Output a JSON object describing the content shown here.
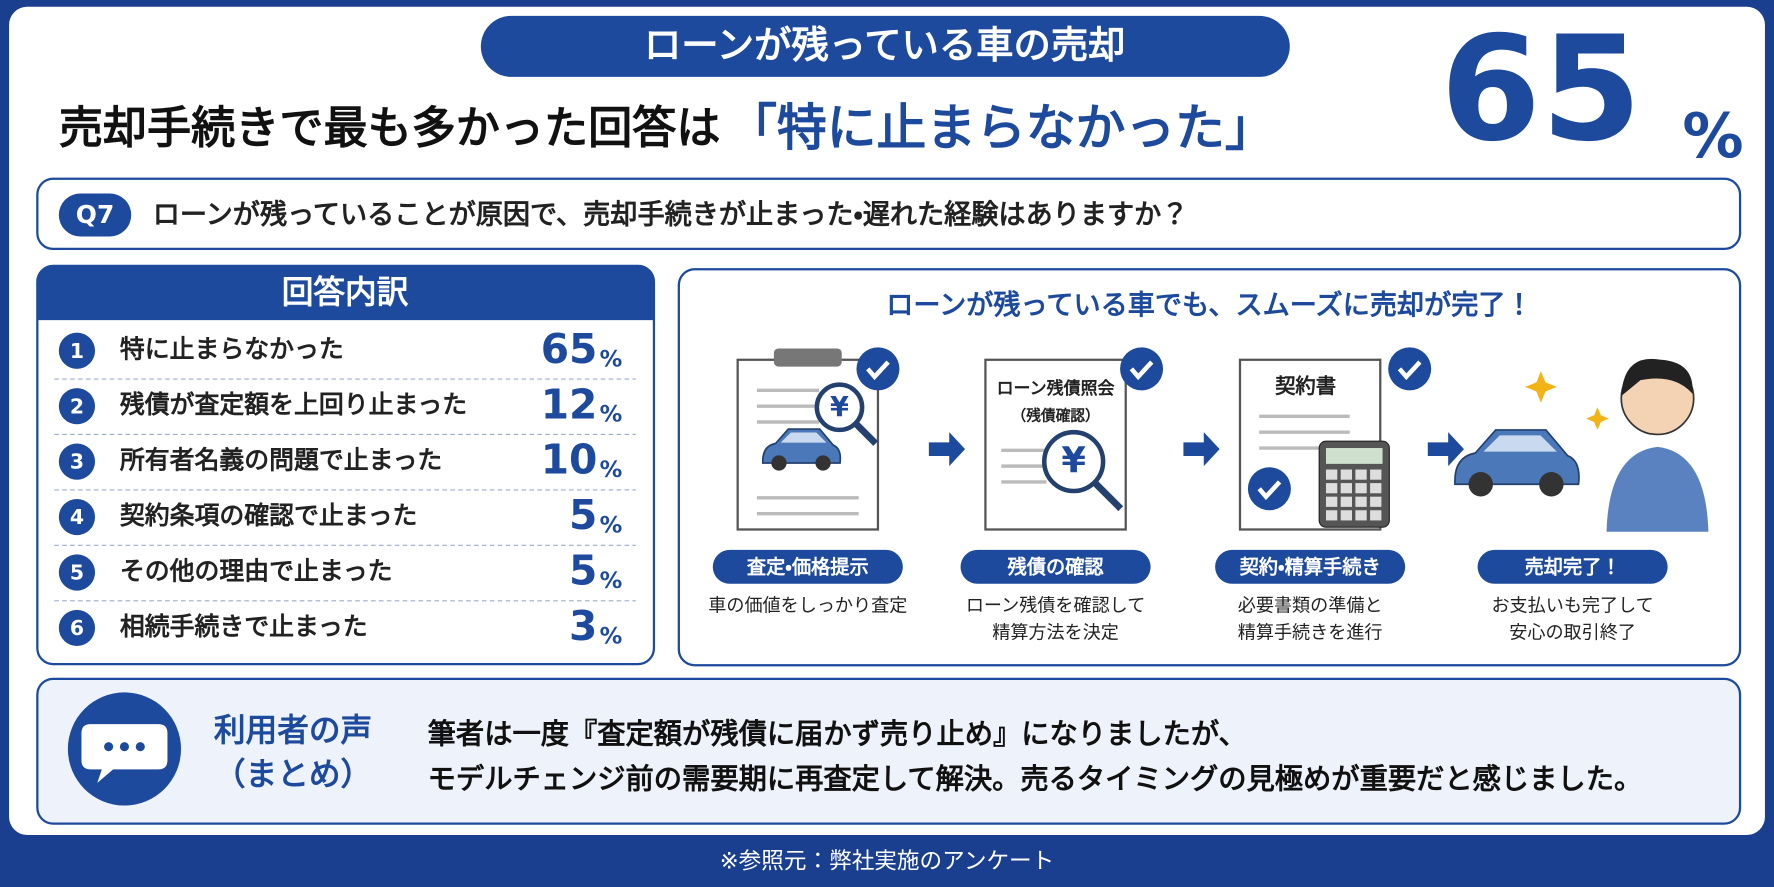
{
  "header": {
    "badge": "ローンが残っている車の売却",
    "headline": "売却手続きで最も多かった回答は",
    "highlight": "「特に止まらなかった」",
    "big_value": 65,
    "big_unit": "%"
  },
  "question": {
    "label": "Q7",
    "text": "ローンが残っていることが原因で、売却手続きが止まった・遅れた経験はありますか？"
  },
  "breakdown": {
    "title": "回答内訳",
    "items": [
      {
        "rank": 1,
        "label": "特に止まらなかった",
        "value": 65,
        "unit": "%"
      },
      {
        "rank": 2,
        "label": "残債が査定額を上回り止まった",
        "value": 12,
        "unit": "%"
      },
      {
        "rank": 3,
        "label": "所有者名義の問題で止まった",
        "value": 10,
        "unit": "%"
      },
      {
        "rank": 4,
        "label": "契約条項の確認で止まった",
        "value": 5,
        "unit": "%"
      },
      {
        "rank": 5,
        "label": "その他の理由で止まった",
        "value": 5,
        "unit": "%"
      },
      {
        "rank": 6,
        "label": "相続手続きで止まった",
        "value": 3,
        "unit": "%"
      }
    ]
  },
  "flow": {
    "title": "ローンが残っている車でも、スムーズに売却が完了！",
    "steps": [
      {
        "icon_text": "¥",
        "label": "査定・価格提示",
        "description": [
          "車の価値をしっかり査定"
        ]
      },
      {
        "doc_title": [
          "ローン残債照会",
          "（残債確認）"
        ],
        "icon_text": "¥",
        "label": "残債の確認",
        "description": [
          "ローン残債を確認して",
          "精算方法を決定"
        ]
      },
      {
        "doc_title": [
          "契約書"
        ],
        "label": "契約・精算手続き",
        "description": [
          "必要書類の準備と",
          "精算手続きを進行"
        ]
      },
      {
        "label": "売却完了！",
        "description": [
          "お支払いも完了して",
          "安心の取引終了"
        ]
      }
    ]
  },
  "voice": {
    "title": [
      "利用者の声",
      "（まとめ）"
    ],
    "lines": [
      "筆者は一度『査定額が残債に届かず売り止め』になりましたが、",
      "モデルチェンジ前の需要期に再査定して解決。売るタイミングの見極めが重要だと感じました。"
    ]
  },
  "footer": "※参照元：弊社実施のアンケート"
}
